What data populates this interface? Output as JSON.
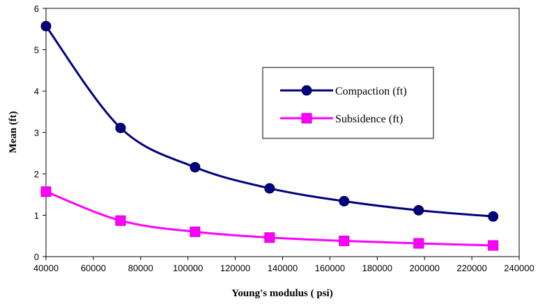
{
  "chart_data": {
    "type": "line",
    "xlabel": "Young's modulus ( psi)",
    "ylabel": "Mean  (ft)",
    "xlim": [
      40000,
      240000
    ],
    "ylim": [
      0,
      6
    ],
    "xticks": [
      40000,
      60000,
      80000,
      100000,
      120000,
      140000,
      160000,
      180000,
      200000,
      220000,
      240000
    ],
    "yticks": [
      0,
      1,
      2,
      3,
      4,
      5,
      6
    ],
    "grid": false,
    "legend_position": "right",
    "series": [
      {
        "name": "Compaction (ft)",
        "color": "#000080",
        "marker": "circle",
        "x": [
          40000,
          71500,
          103000,
          134500,
          166000,
          197500,
          229000
        ],
        "y": [
          5.57,
          3.11,
          2.16,
          1.65,
          1.34,
          1.12,
          0.97
        ]
      },
      {
        "name": "Subsidence (ft)",
        "color": "#ff00ff",
        "marker": "square",
        "x": [
          40000,
          71500,
          103000,
          134500,
          166000,
          197500,
          229000
        ],
        "y": [
          1.57,
          0.87,
          0.6,
          0.46,
          0.38,
          0.32,
          0.27
        ]
      }
    ]
  }
}
